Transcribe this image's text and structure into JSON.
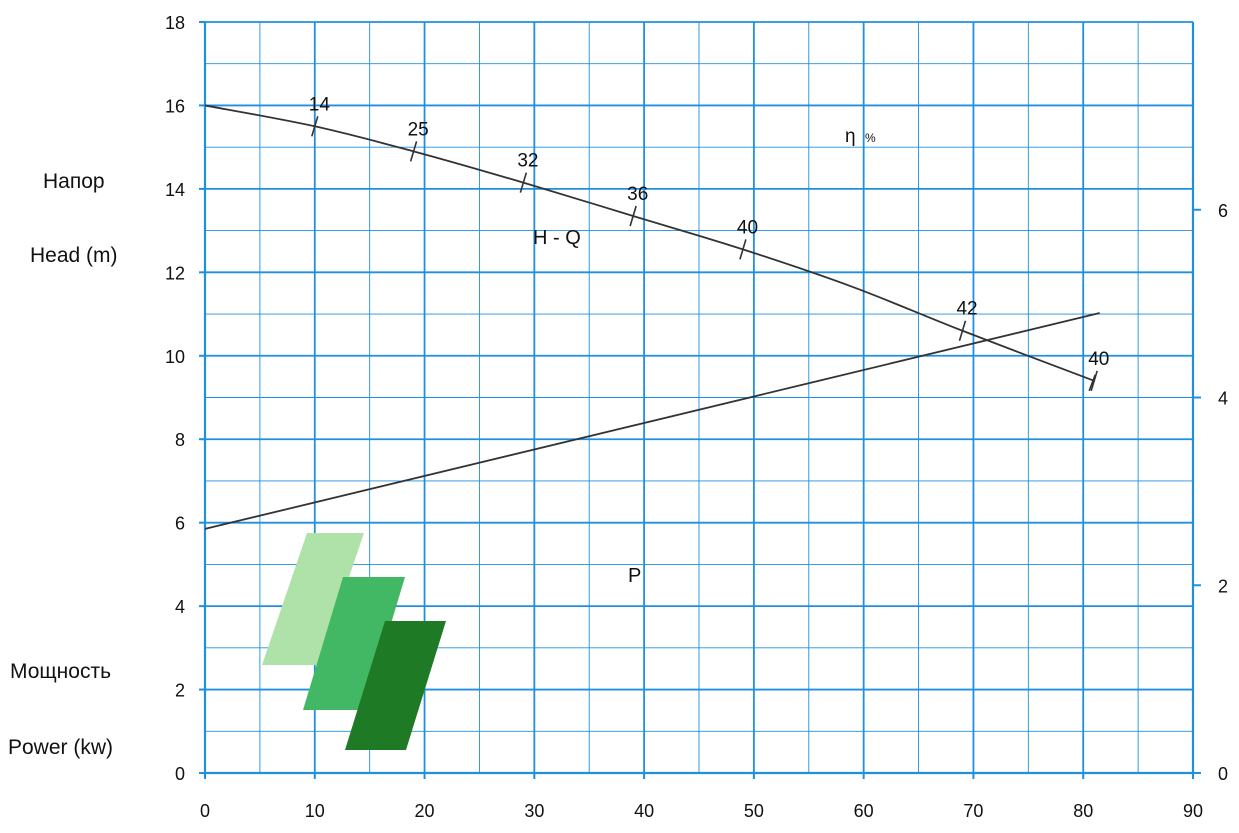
{
  "chart_data": {
    "type": "line",
    "x_ticks": [
      0,
      10,
      20,
      30,
      40,
      50,
      60,
      70,
      80,
      90
    ],
    "y_left_ticks": [
      0,
      2,
      4,
      6,
      8,
      10,
      12,
      14,
      16,
      18
    ],
    "y_right_ticks": [
      0,
      2,
      4,
      6
    ],
    "xlim": [
      0,
      90
    ],
    "ylim_left": [
      0,
      18
    ],
    "ylim_right": [
      0,
      8
    ],
    "grid": true,
    "left_labels": {
      "head_ru": "Напор",
      "head_en": "Head (m)",
      "power_ru": "Мощность",
      "power_en": "Power (kw)"
    },
    "head_curve": {
      "label": "H - Q",
      "points": [
        {
          "x": 0,
          "y": 16.0
        },
        {
          "x": 10,
          "y": 15.5
        },
        {
          "x": 19,
          "y": 14.9
        },
        {
          "x": 29,
          "y": 14.15
        },
        {
          "x": 39,
          "y": 13.35
        },
        {
          "x": 49,
          "y": 12.55
        },
        {
          "x": 59,
          "y": 11.65
        },
        {
          "x": 69,
          "y": 10.6
        },
        {
          "x": 81,
          "y": 9.4
        }
      ]
    },
    "efficiency": {
      "label": "η",
      "unit": "%",
      "marks": [
        {
          "x": 10,
          "y": 15.5,
          "value": "14"
        },
        {
          "x": 19,
          "y": 14.9,
          "value": "25"
        },
        {
          "x": 29,
          "y": 14.15,
          "value": "32"
        },
        {
          "x": 39,
          "y": 13.35,
          "value": "36"
        },
        {
          "x": 49,
          "y": 12.55,
          "value": "40"
        },
        {
          "x": 69,
          "y": 10.6,
          "value": "42"
        },
        {
          "x": 81,
          "y": 9.4,
          "value": "40"
        }
      ]
    },
    "power_curve": {
      "label": "P",
      "points": [
        {
          "x": 0,
          "y": 2.6
        },
        {
          "x": 81.5,
          "y": 4.9
        }
      ]
    },
    "colors": {
      "grid": "#1f8fe0",
      "axis": "#1f8fe0",
      "curve": "#333333",
      "logo_light": "#aee2a8",
      "logo_mid": "#43b864",
      "logo_dark": "#1e7a25"
    }
  }
}
